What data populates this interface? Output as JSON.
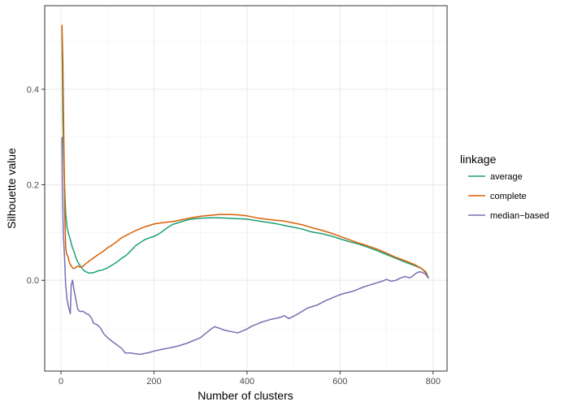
{
  "chart_data": {
    "type": "line",
    "xlabel": "Number of clusters",
    "ylabel": "Silhouette value",
    "xlim": [
      -35,
      830
    ],
    "ylim": [
      -0.19,
      0.575
    ],
    "x_ticks": [
      0,
      200,
      400,
      600,
      800
    ],
    "x_minor_ticks": [
      100,
      300,
      500,
      700
    ],
    "y_ticks": [
      0.0,
      0.2,
      0.4
    ],
    "y_tick_labels": [
      "0.0",
      "0.2",
      "0.4"
    ],
    "y_minor_ticks": [
      -0.1,
      0.1,
      0.3,
      0.5
    ],
    "grid": true,
    "legend": {
      "title": "linkage",
      "placement": "right"
    },
    "series": [
      {
        "name": "average",
        "color": "#1B9E77",
        "points": [
          [
            2,
            0.53
          ],
          [
            3,
            0.45
          ],
          [
            4,
            0.34
          ],
          [
            6,
            0.25
          ],
          [
            8,
            0.19
          ],
          [
            10,
            0.14
          ],
          [
            13,
            0.11
          ],
          [
            17,
            0.095
          ],
          [
            20,
            0.085
          ],
          [
            24,
            0.07
          ],
          [
            28,
            0.06
          ],
          [
            33,
            0.045
          ],
          [
            38,
            0.035
          ],
          [
            43,
            0.028
          ],
          [
            50,
            0.02
          ],
          [
            60,
            0.015
          ],
          [
            70,
            0.016
          ],
          [
            80,
            0.02
          ],
          [
            90,
            0.022
          ],
          [
            100,
            0.026
          ],
          [
            110,
            0.032
          ],
          [
            120,
            0.038
          ],
          [
            130,
            0.046
          ],
          [
            140,
            0.052
          ],
          [
            150,
            0.062
          ],
          [
            160,
            0.072
          ],
          [
            170,
            0.079
          ],
          [
            180,
            0.085
          ],
          [
            190,
            0.089
          ],
          [
            200,
            0.092
          ],
          [
            210,
            0.097
          ],
          [
            220,
            0.104
          ],
          [
            230,
            0.111
          ],
          [
            240,
            0.117
          ],
          [
            250,
            0.12
          ],
          [
            260,
            0.123
          ],
          [
            270,
            0.126
          ],
          [
            280,
            0.128
          ],
          [
            300,
            0.13
          ],
          [
            320,
            0.131
          ],
          [
            340,
            0.131
          ],
          [
            360,
            0.13
          ],
          [
            380,
            0.129
          ],
          [
            400,
            0.128
          ],
          [
            420,
            0.125
          ],
          [
            440,
            0.122
          ],
          [
            460,
            0.119
          ],
          [
            480,
            0.115
          ],
          [
            500,
            0.111
          ],
          [
            520,
            0.107
          ],
          [
            540,
            0.101
          ],
          [
            560,
            0.098
          ],
          [
            580,
            0.093
          ],
          [
            600,
            0.087
          ],
          [
            620,
            0.081
          ],
          [
            640,
            0.076
          ],
          [
            660,
            0.069
          ],
          [
            680,
            0.062
          ],
          [
            700,
            0.054
          ],
          [
            720,
            0.046
          ],
          [
            740,
            0.038
          ],
          [
            760,
            0.031
          ],
          [
            775,
            0.025
          ],
          [
            785,
            0.017
          ],
          [
            790,
            0.005
          ]
        ]
      },
      {
        "name": "complete",
        "color": "#D95F02",
        "points": [
          [
            2,
            0.535
          ],
          [
            4,
            0.46
          ],
          [
            6,
            0.3
          ],
          [
            8,
            0.15
          ],
          [
            10,
            0.07
          ],
          [
            12,
            0.055
          ],
          [
            15,
            0.05
          ],
          [
            18,
            0.038
          ],
          [
            22,
            0.03
          ],
          [
            26,
            0.025
          ],
          [
            30,
            0.025
          ],
          [
            35,
            0.03
          ],
          [
            40,
            0.028
          ],
          [
            45,
            0.028
          ],
          [
            50,
            0.032
          ],
          [
            60,
            0.04
          ],
          [
            70,
            0.047
          ],
          [
            80,
            0.054
          ],
          [
            90,
            0.06
          ],
          [
            100,
            0.068
          ],
          [
            110,
            0.074
          ],
          [
            120,
            0.081
          ],
          [
            130,
            0.089
          ],
          [
            140,
            0.094
          ],
          [
            150,
            0.099
          ],
          [
            160,
            0.104
          ],
          [
            170,
            0.108
          ],
          [
            180,
            0.112
          ],
          [
            190,
            0.115
          ],
          [
            200,
            0.118
          ],
          [
            220,
            0.121
          ],
          [
            240,
            0.123
          ],
          [
            260,
            0.127
          ],
          [
            280,
            0.131
          ],
          [
            300,
            0.134
          ],
          [
            320,
            0.136
          ],
          [
            340,
            0.138
          ],
          [
            360,
            0.138
          ],
          [
            380,
            0.137
          ],
          [
            400,
            0.135
          ],
          [
            420,
            0.131
          ],
          [
            440,
            0.128
          ],
          [
            460,
            0.126
          ],
          [
            480,
            0.124
          ],
          [
            500,
            0.12
          ],
          [
            520,
            0.116
          ],
          [
            540,
            0.11
          ],
          [
            560,
            0.105
          ],
          [
            580,
            0.099
          ],
          [
            600,
            0.092
          ],
          [
            620,
            0.085
          ],
          [
            640,
            0.078
          ],
          [
            660,
            0.072
          ],
          [
            680,
            0.065
          ],
          [
            700,
            0.057
          ],
          [
            720,
            0.048
          ],
          [
            740,
            0.041
          ],
          [
            760,
            0.033
          ],
          [
            775,
            0.025
          ],
          [
            785,
            0.015
          ],
          [
            790,
            0.004
          ]
        ]
      },
      {
        "name": "median−based",
        "color": "#7570B3",
        "points": [
          [
            2,
            0.3
          ],
          [
            3,
            0.2
          ],
          [
            5,
            0.1
          ],
          [
            8,
            0.04
          ],
          [
            10,
            -0.01
          ],
          [
            13,
            -0.04
          ],
          [
            16,
            -0.055
          ],
          [
            20,
            -0.07
          ],
          [
            22,
            -0.01
          ],
          [
            25,
            0.0
          ],
          [
            28,
            -0.02
          ],
          [
            32,
            -0.04
          ],
          [
            36,
            -0.06
          ],
          [
            40,
            -0.065
          ],
          [
            48,
            -0.065
          ],
          [
            55,
            -0.07
          ],
          [
            60,
            -0.072
          ],
          [
            66,
            -0.08
          ],
          [
            70,
            -0.09
          ],
          [
            78,
            -0.093
          ],
          [
            85,
            -0.1
          ],
          [
            92,
            -0.112
          ],
          [
            100,
            -0.12
          ],
          [
            110,
            -0.128
          ],
          [
            120,
            -0.135
          ],
          [
            130,
            -0.142
          ],
          [
            138,
            -0.152
          ],
          [
            150,
            -0.152
          ],
          [
            160,
            -0.154
          ],
          [
            170,
            -0.155
          ],
          [
            180,
            -0.153
          ],
          [
            190,
            -0.151
          ],
          [
            200,
            -0.148
          ],
          [
            210,
            -0.146
          ],
          [
            220,
            -0.144
          ],
          [
            230,
            -0.142
          ],
          [
            240,
            -0.14
          ],
          [
            250,
            -0.138
          ],
          [
            260,
            -0.135
          ],
          [
            270,
            -0.132
          ],
          [
            280,
            -0.128
          ],
          [
            290,
            -0.124
          ],
          [
            300,
            -0.12
          ],
          [
            310,
            -0.112
          ],
          [
            320,
            -0.104
          ],
          [
            330,
            -0.097
          ],
          [
            340,
            -0.1
          ],
          [
            350,
            -0.104
          ],
          [
            360,
            -0.106
          ],
          [
            370,
            -0.108
          ],
          [
            380,
            -0.11
          ],
          [
            390,
            -0.106
          ],
          [
            400,
            -0.102
          ],
          [
            410,
            -0.096
          ],
          [
            420,
            -0.092
          ],
          [
            430,
            -0.088
          ],
          [
            440,
            -0.085
          ],
          [
            450,
            -0.082
          ],
          [
            460,
            -0.08
          ],
          [
            470,
            -0.078
          ],
          [
            480,
            -0.074
          ],
          [
            490,
            -0.08
          ],
          [
            500,
            -0.075
          ],
          [
            510,
            -0.07
          ],
          [
            520,
            -0.064
          ],
          [
            530,
            -0.058
          ],
          [
            540,
            -0.055
          ],
          [
            550,
            -0.052
          ],
          [
            560,
            -0.047
          ],
          [
            570,
            -0.042
          ],
          [
            580,
            -0.038
          ],
          [
            590,
            -0.034
          ],
          [
            600,
            -0.03
          ],
          [
            610,
            -0.027
          ],
          [
            620,
            -0.025
          ],
          [
            630,
            -0.022
          ],
          [
            640,
            -0.018
          ],
          [
            650,
            -0.014
          ],
          [
            660,
            -0.011
          ],
          [
            670,
            -0.008
          ],
          [
            680,
            -0.005
          ],
          [
            690,
            -0.002
          ],
          [
            700,
            0.002
          ],
          [
            710,
            -0.002
          ],
          [
            720,
            0.0
          ],
          [
            730,
            0.005
          ],
          [
            740,
            0.008
          ],
          [
            750,
            0.005
          ],
          [
            760,
            0.012
          ],
          [
            765,
            0.016
          ],
          [
            772,
            0.018
          ],
          [
            780,
            0.015
          ],
          [
            785,
            0.012
          ],
          [
            790,
            0.004
          ]
        ]
      }
    ]
  }
}
